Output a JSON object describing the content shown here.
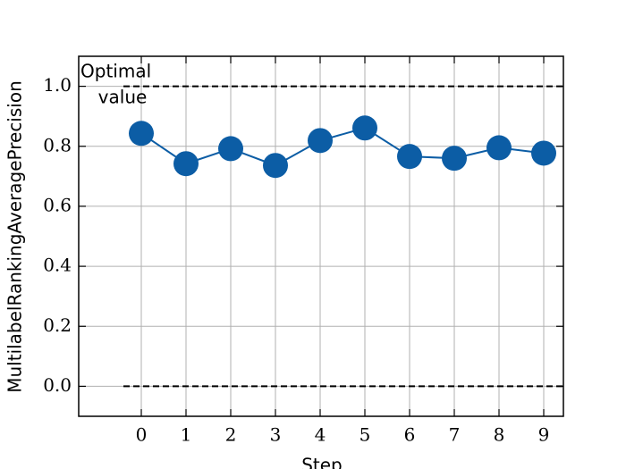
{
  "chart_data": {
    "type": "line",
    "xlabel": "Step",
    "ylabel": "MultilabelRankingAveragePrecision",
    "annotation_lines": [
      "Optimal",
      "value"
    ],
    "x": [
      0,
      1,
      2,
      3,
      4,
      5,
      6,
      7,
      8,
      9
    ],
    "series": [
      {
        "color": "#0C5DA5",
        "values": [
          0.843,
          0.742,
          0.792,
          0.736,
          0.819,
          0.861,
          0.766,
          0.76,
          0.795,
          0.777
        ]
      }
    ],
    "reference_lines": [
      1,
      0
    ],
    "xlim": [
      -1.4,
      9.44
    ],
    "ylim": [
      -0.1,
      1.1
    ],
    "xticks": [
      0,
      1,
      2,
      3,
      4,
      5,
      6,
      7,
      8,
      9
    ],
    "yticks": [
      {
        "value": 0,
        "label": "0.0"
      },
      0.2,
      0.4,
      0.6,
      0.8,
      {
        "value": 1,
        "label": "1.0"
      }
    ],
    "grid": true
  }
}
